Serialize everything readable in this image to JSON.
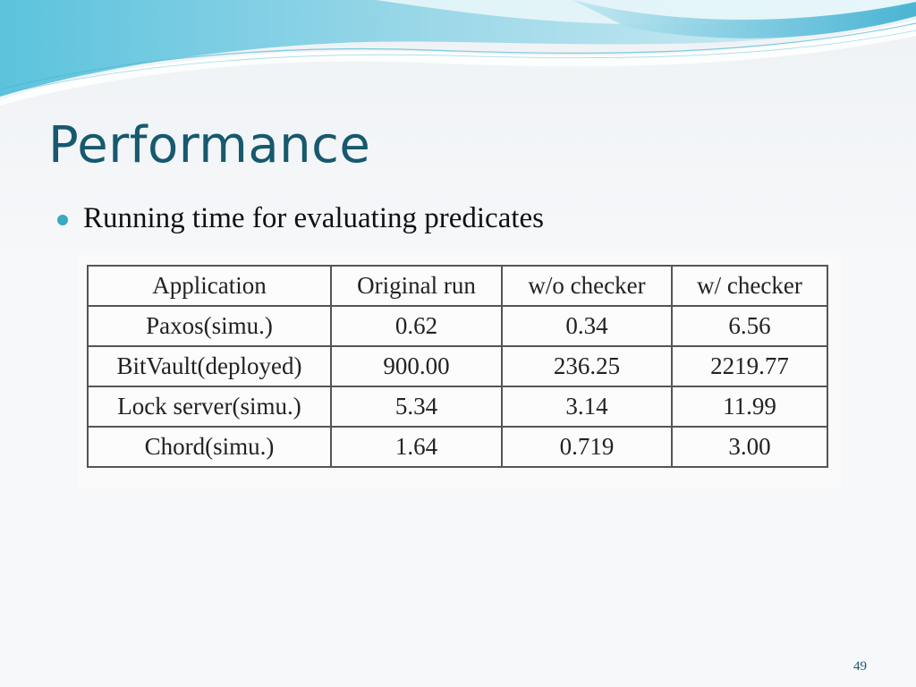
{
  "slide": {
    "title": "Performance",
    "bullet": "Running time for evaluating predicates",
    "page_number": "49"
  },
  "table": {
    "headers": [
      "Application",
      "Original run",
      "w/o checker",
      "w/ checker"
    ],
    "rows": [
      [
        "Paxos(simu.)",
        "0.62",
        "0.34",
        "6.56"
      ],
      [
        "BitVault(deployed)",
        "900.00",
        "236.25",
        "2219.77"
      ],
      [
        "Lock server(simu.)",
        "5.34",
        "3.14",
        "11.99"
      ],
      [
        "Chord(simu.)",
        "1.64",
        "0.719",
        "3.00"
      ]
    ]
  },
  "colors": {
    "title": "#17596e",
    "bullet": "#3aa9c3",
    "wave_dark": "#3fb4d4",
    "wave_light": "#a8dcea"
  }
}
